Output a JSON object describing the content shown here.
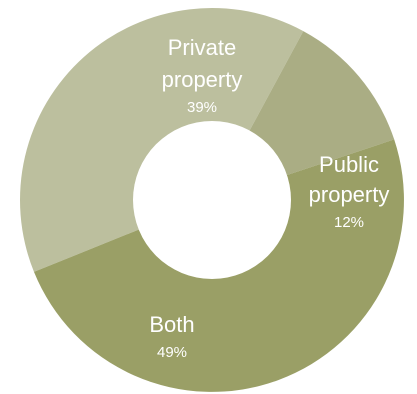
{
  "chart_data": {
    "type": "pie",
    "donut": true,
    "slices": [
      {
        "label_lines": [
          "Private",
          "property"
        ],
        "value": 39,
        "value_label": "39%",
        "color": "#bcbf9e"
      },
      {
        "label_lines": [
          "Public",
          "property"
        ],
        "value": 12,
        "value_label": "12%",
        "color": "#aaad84"
      },
      {
        "label_lines": [
          "Both"
        ],
        "value": 49,
        "value_label": "49%",
        "color": "#9a9f66"
      }
    ],
    "start_angle_deg": 248,
    "direction": "clockwise",
    "hole_color": "#ffffff",
    "slice_text_color": "#ffffff"
  }
}
